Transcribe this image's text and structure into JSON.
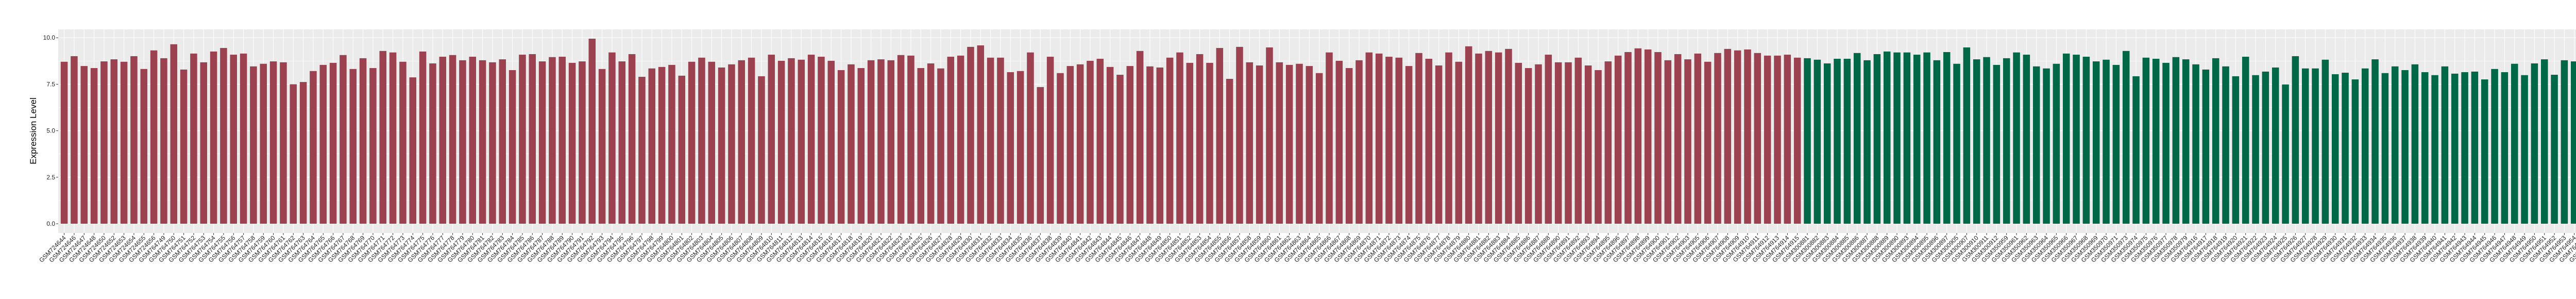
{
  "chart_data": {
    "type": "bar",
    "title": "",
    "xlabel": "",
    "ylabel": "Expression Level",
    "ylim": [
      -0.5,
      10.45
    ],
    "yticks": [
      "0.0",
      "2.5",
      "5.0",
      "7.5",
      "10.0"
    ],
    "grid": true,
    "legend": "none",
    "panel_background": "#EBEBEB",
    "series": [
      {
        "color": "#9C4150",
        "categories": [
          "GSM724644",
          "GSM724646",
          "GSM724647",
          "GSM724648",
          "GSM724650",
          "GSM724652",
          "GSM724653",
          "GSM724654",
          "GSM724655",
          "GSM724656",
          "GSM764749",
          "GSM764750",
          "GSM764751",
          "GSM764752",
          "GSM764753",
          "GSM764754",
          "GSM764755",
          "GSM764756",
          "GSM764757",
          "GSM764758",
          "GSM764759",
          "GSM764760",
          "GSM764761",
          "GSM764762",
          "GSM764763",
          "GSM764764",
          "GSM764765",
          "GSM764766",
          "GSM764767",
          "GSM764768",
          "GSM764769",
          "GSM764770",
          "GSM764771",
          "GSM764772",
          "GSM764773",
          "GSM764774",
          "GSM764775",
          "GSM764776",
          "GSM764777",
          "GSM764778",
          "GSM764779",
          "GSM764780",
          "GSM764781",
          "GSM764782",
          "GSM764783",
          "GSM764784",
          "GSM764785",
          "GSM764786",
          "GSM764787",
          "GSM764788",
          "GSM764789",
          "GSM764790",
          "GSM764791",
          "GSM764792",
          "GSM764793",
          "GSM764794",
          "GSM764795",
          "GSM764796",
          "GSM764797",
          "GSM764798",
          "GSM764799",
          "GSM764800",
          "GSM764801",
          "GSM764802",
          "GSM764803",
          "GSM764804",
          "GSM764805",
          "GSM764806",
          "GSM764807",
          "GSM764808",
          "GSM764809",
          "GSM764810",
          "GSM764811",
          "GSM764812",
          "GSM764813",
          "GSM764814",
          "GSM764815",
          "GSM764816",
          "GSM764817",
          "GSM764818",
          "GSM764819",
          "GSM764820",
          "GSM764821",
          "GSM764822",
          "GSM764823",
          "GSM764824",
          "GSM764825",
          "GSM764826",
          "GSM764827",
          "GSM764828",
          "GSM764829",
          "GSM764830",
          "GSM764831",
          "GSM764832",
          "GSM764833",
          "GSM764834",
          "GSM764835",
          "GSM764836",
          "GSM764837",
          "GSM764838",
          "GSM764839",
          "GSM764840",
          "GSM764841",
          "GSM764842",
          "GSM764843",
          "GSM764844",
          "GSM764845",
          "GSM764846",
          "GSM764847",
          "GSM764848",
          "GSM764849",
          "GSM764850",
          "GSM764851",
          "GSM764852",
          "GSM764853",
          "GSM764854",
          "GSM764855",
          "GSM764856",
          "GSM764857",
          "GSM764858",
          "GSM764859",
          "GSM764860",
          "GSM764861",
          "GSM764862",
          "GSM764863",
          "GSM764864",
          "GSM764865",
          "GSM764866",
          "GSM764867",
          "GSM764868",
          "GSM764869",
          "GSM764870",
          "GSM764871",
          "GSM764872",
          "GSM764873",
          "GSM764874",
          "GSM764875",
          "GSM764876",
          "GSM764877",
          "GSM764878",
          "GSM764879",
          "GSM764880",
          "GSM764881",
          "GSM764882",
          "GSM764883",
          "GSM764884",
          "GSM764885",
          "GSM764886",
          "GSM764887",
          "GSM764888",
          "GSM764890",
          "GSM764891",
          "GSM764892",
          "GSM764893",
          "GSM764894",
          "GSM764895",
          "GSM764896",
          "GSM764897",
          "GSM764898",
          "GSM764899",
          "GSM764900",
          "GSM764901",
          "GSM764902",
          "GSM764903",
          "GSM764905",
          "GSM764906",
          "GSM764907",
          "GSM764908",
          "GSM764909",
          "GSM764910",
          "GSM764911",
          "GSM764912",
          "GSM764913",
          "GSM764914",
          "GSM764915"
        ],
        "values": [
          8.71,
          9.01,
          8.48,
          8.37,
          8.73,
          8.84,
          8.71,
          9.01,
          8.32,
          9.32,
          8.9,
          9.65,
          8.29,
          9.15,
          8.68,
          9.26,
          9.45,
          9.09,
          9.15,
          8.46,
          8.6,
          8.73,
          8.68,
          7.5,
          7.62,
          8.21,
          8.54,
          8.65,
          9.07,
          8.32,
          8.9,
          8.37,
          9.29,
          9.21,
          8.71,
          7.87,
          9.26,
          8.62,
          8.98,
          9.07,
          8.79,
          8.98,
          8.79,
          8.68,
          8.84,
          8.26,
          9.09,
          9.12,
          8.73,
          8.96,
          8.98,
          8.65,
          8.73,
          9.95,
          8.32,
          9.21,
          8.73,
          9.12,
          7.9,
          8.35,
          8.43,
          8.54,
          7.96,
          8.71,
          8.93,
          8.71,
          8.4,
          8.57,
          8.79,
          8.93,
          7.93,
          9.09,
          8.76,
          8.9,
          8.82,
          9.09,
          8.98,
          8.76,
          8.26,
          8.57,
          8.37,
          8.79,
          8.84,
          8.79,
          9.07,
          9.04,
          8.37,
          8.62,
          8.35,
          8.98,
          9.04,
          9.51,
          9.59,
          8.93,
          8.93,
          8.15,
          8.21,
          9.21,
          7.35,
          8.98,
          8.1,
          8.48,
          8.57,
          8.76,
          8.87,
          8.43,
          8.01,
          8.48,
          9.29,
          8.46,
          8.4,
          8.93,
          9.21,
          8.65,
          9.12,
          8.65,
          9.45,
          7.79,
          9.51,
          8.68,
          8.51,
          9.48,
          8.68,
          8.54,
          8.6,
          8.48,
          8.1,
          9.21,
          8.76,
          8.37,
          8.79,
          9.21,
          9.15,
          8.98,
          8.93,
          8.48,
          9.18,
          8.87,
          8.51,
          9.21,
          8.71,
          9.54,
          9.15,
          9.29,
          9.21,
          9.4,
          8.65,
          8.37,
          8.57,
          9.09,
          8.68,
          8.68,
          8.93,
          8.51,
          8.26,
          8.73,
          9.04,
          9.23,
          9.43,
          9.37,
          9.23,
          8.79,
          9.12,
          8.84,
          9.15,
          8.71,
          9.18,
          9.4,
          9.32,
          9.37,
          9.18,
          9.04,
          9.04,
          9.09,
          8.93
        ]
      },
      {
        "color": "#006847",
        "categories": [
          "GSM300881",
          "GSM300882",
          "GSM300883",
          "GSM300884",
          "GSM300885",
          "GSM300886",
          "GSM300887",
          "GSM300888",
          "GSM300889",
          "GSM300890",
          "GSM300893",
          "GSM300894",
          "GSM300895",
          "GSM300896",
          "GSM300897",
          "GSM300905",
          "GSM300907",
          "GSM300910",
          "GSM300911",
          "GSM300912",
          "GSM350959",
          "GSM350961",
          "GSM350962",
          "GSM350963",
          "GSM350964",
          "GSM350965",
          "GSM350966",
          "GSM350967",
          "GSM350968",
          "GSM350969",
          "GSM350970",
          "GSM350971",
          "GSM350973",
          "GSM350974",
          "GSM350975",
          "GSM350976",
          "GSM350977",
          "GSM350978",
          "GSM350979",
          "GSM764916",
          "GSM764917",
          "GSM764918",
          "GSM764919",
          "GSM764920",
          "GSM764921",
          "GSM764922",
          "GSM764923",
          "GSM764924",
          "GSM764925",
          "GSM764926",
          "GSM764927",
          "GSM764928",
          "GSM764929",
          "GSM764930",
          "GSM764931",
          "GSM764932",
          "GSM764933",
          "GSM764934",
          "GSM764935",
          "GSM764936",
          "GSM764937",
          "GSM764938",
          "GSM764939",
          "GSM764940",
          "GSM764941",
          "GSM764942",
          "GSM764943",
          "GSM764944",
          "GSM764945",
          "GSM764946",
          "GSM764947",
          "GSM764948",
          "GSM764949",
          "GSM764950",
          "GSM764951",
          "GSM764952",
          "GSM764953",
          "GSM764954",
          "GSM764955",
          "GSM764956",
          "GSM764957",
          "GSM764958",
          "GSM764959",
          "GSM764960",
          "GSM80748",
          "GSM80749"
        ],
        "values": [
          8.9,
          8.82,
          8.62,
          8.87,
          8.87,
          9.18,
          8.79,
          9.12,
          9.26,
          9.21,
          9.21,
          9.09,
          9.21,
          8.79,
          9.23,
          8.6,
          9.48,
          8.84,
          8.96,
          8.54,
          8.9,
          9.21,
          9.09,
          8.46,
          8.35,
          8.6,
          9.15,
          9.09,
          8.98,
          8.73,
          8.82,
          8.54,
          9.29,
          7.93,
          8.93,
          8.87,
          8.65,
          8.96,
          8.84,
          8.57,
          8.29,
          8.9,
          8.46,
          7.93,
          8.98,
          7.99,
          8.18,
          8.4,
          7.49,
          9.01,
          8.35,
          8.35,
          8.82,
          8.04,
          8.12,
          7.76,
          8.35,
          8.84,
          8.1,
          8.46,
          8.26,
          8.57,
          8.15,
          7.99,
          8.46,
          8.07,
          8.15,
          8.18,
          7.76,
          8.32,
          8.15,
          8.6,
          7.99,
          8.62,
          8.84,
          8.01,
          8.79,
          8.73,
          8.1,
          8.65,
          8.54,
          8.1,
          8.26,
          8.6,
          7.43,
          8.12
        ]
      }
    ]
  }
}
